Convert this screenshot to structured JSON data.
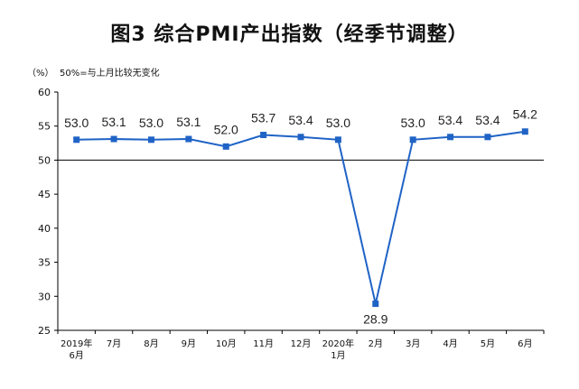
{
  "title": "图3  综合PMI产出指数（经季节调整）",
  "unit_label": "（%）",
  "note": "50%=与上月比较无变化",
  "colors": {
    "line": "#1f63c6",
    "marker": "#1f63c6",
    "axis": "#000000",
    "reference": "#000000"
  },
  "chart_data": {
    "type": "line",
    "title": "图3  综合PMI产出指数（经季节调整）",
    "ylabel": "（%）",
    "ylim": [
      25,
      60
    ],
    "yticks": [
      25,
      30,
      35,
      40,
      45,
      50,
      55,
      60
    ],
    "reference_line": 50,
    "grid": false,
    "categories": [
      [
        "2019年",
        "6月"
      ],
      [
        "7月"
      ],
      [
        "8月"
      ],
      [
        "9月"
      ],
      [
        "10月"
      ],
      [
        "11月"
      ],
      [
        "12月"
      ],
      [
        "2020年",
        "1月"
      ],
      [
        "2月"
      ],
      [
        "3月"
      ],
      [
        "4月"
      ],
      [
        "5月"
      ],
      [
        "6月"
      ]
    ],
    "series": [
      {
        "values": [
          53.0,
          53.1,
          53.0,
          53.1,
          52.0,
          53.7,
          53.4,
          53.0,
          28.9,
          53.0,
          53.4,
          53.4,
          54.2
        ],
        "labels": [
          "53.0",
          "53.1",
          "53.0",
          "53.1",
          "52.0",
          "53.7",
          "53.4",
          "53.0",
          "28.9",
          "53.0",
          "53.4",
          "53.4",
          "54.2"
        ]
      }
    ]
  }
}
